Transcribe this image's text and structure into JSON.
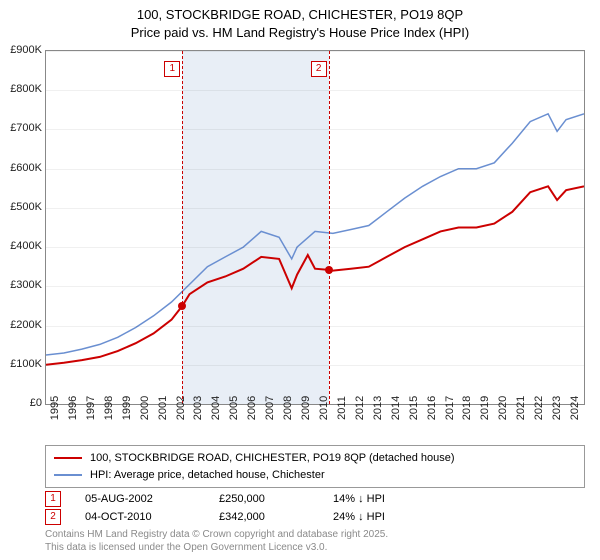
{
  "title_line1": "100, STOCKBRIDGE ROAD, CHICHESTER, PO19 8QP",
  "title_line2": "Price paid vs. HM Land Registry's House Price Index (HPI)",
  "chart": {
    "type": "line",
    "x_start_year": 1995,
    "x_end_year": 2025,
    "y_min": 0,
    "y_max": 900000,
    "y_tick_step": 100000,
    "y_tick_labels": [
      "£0",
      "£100K",
      "£200K",
      "£300K",
      "£400K",
      "£500K",
      "£600K",
      "£700K",
      "£800K",
      "£900K"
    ],
    "x_tick_years": [
      1995,
      1996,
      1997,
      1998,
      1999,
      2000,
      2001,
      2002,
      2003,
      2004,
      2005,
      2006,
      2007,
      2008,
      2009,
      2010,
      2011,
      2012,
      2013,
      2014,
      2015,
      2016,
      2017,
      2018,
      2019,
      2020,
      2021,
      2022,
      2023,
      2024
    ],
    "grid_color": "#f0f0f0",
    "background_color": "#ffffff",
    "shaded_range_years": [
      2002.6,
      2010.76
    ],
    "shaded_color": "#e8eef6",
    "series": [
      {
        "name": "price_paid",
        "label": "100, STOCKBRIDGE ROAD, CHICHESTER, PO19 8QP (detached house)",
        "color": "#cc0000",
        "line_width": 2,
        "points_year_value": [
          [
            1995,
            100000
          ],
          [
            1996,
            105000
          ],
          [
            1997,
            112000
          ],
          [
            1998,
            120000
          ],
          [
            1999,
            135000
          ],
          [
            2000,
            155000
          ],
          [
            2001,
            180000
          ],
          [
            2002,
            215000
          ],
          [
            2002.6,
            250000
          ],
          [
            2003,
            280000
          ],
          [
            2004,
            310000
          ],
          [
            2005,
            325000
          ],
          [
            2006,
            345000
          ],
          [
            2007,
            375000
          ],
          [
            2008,
            370000
          ],
          [
            2008.7,
            295000
          ],
          [
            2009,
            330000
          ],
          [
            2009.6,
            380000
          ],
          [
            2010,
            345000
          ],
          [
            2010.76,
            342000
          ],
          [
            2011,
            340000
          ],
          [
            2012,
            345000
          ],
          [
            2013,
            350000
          ],
          [
            2014,
            375000
          ],
          [
            2015,
            400000
          ],
          [
            2016,
            420000
          ],
          [
            2017,
            440000
          ],
          [
            2018,
            450000
          ],
          [
            2019,
            450000
          ],
          [
            2020,
            460000
          ],
          [
            2021,
            490000
          ],
          [
            2022,
            540000
          ],
          [
            2023,
            555000
          ],
          [
            2023.5,
            520000
          ],
          [
            2024,
            545000
          ],
          [
            2025,
            555000
          ]
        ]
      },
      {
        "name": "hpi",
        "label": "HPI: Average price, detached house, Chichester",
        "color": "#6a8fd1",
        "line_width": 1.5,
        "points_year_value": [
          [
            1995,
            125000
          ],
          [
            1996,
            130000
          ],
          [
            1997,
            140000
          ],
          [
            1998,
            152000
          ],
          [
            1999,
            170000
          ],
          [
            2000,
            195000
          ],
          [
            2001,
            225000
          ],
          [
            2002,
            260000
          ],
          [
            2003,
            305000
          ],
          [
            2004,
            350000
          ],
          [
            2005,
            375000
          ],
          [
            2006,
            400000
          ],
          [
            2007,
            440000
          ],
          [
            2008,
            425000
          ],
          [
            2008.7,
            370000
          ],
          [
            2009,
            400000
          ],
          [
            2010,
            440000
          ],
          [
            2011,
            435000
          ],
          [
            2012,
            445000
          ],
          [
            2013,
            455000
          ],
          [
            2014,
            490000
          ],
          [
            2015,
            525000
          ],
          [
            2016,
            555000
          ],
          [
            2017,
            580000
          ],
          [
            2018,
            600000
          ],
          [
            2019,
            600000
          ],
          [
            2020,
            615000
          ],
          [
            2021,
            665000
          ],
          [
            2022,
            720000
          ],
          [
            2023,
            740000
          ],
          [
            2023.5,
            695000
          ],
          [
            2024,
            725000
          ],
          [
            2025,
            740000
          ]
        ]
      }
    ],
    "sale_markers": [
      {
        "n": "1",
        "year": 2002.6,
        "value": 250000
      },
      {
        "n": "2",
        "year": 2010.76,
        "value": 342000
      }
    ]
  },
  "legend": {
    "items": [
      {
        "color": "#cc0000",
        "label": "100, STOCKBRIDGE ROAD, CHICHESTER, PO19 8QP (detached house)"
      },
      {
        "color": "#6a8fd1",
        "label": "HPI: Average price, detached house, Chichester"
      }
    ]
  },
  "sales": [
    {
      "n": "1",
      "date": "05-AUG-2002",
      "price": "£250,000",
      "delta": "14% ↓ HPI"
    },
    {
      "n": "2",
      "date": "04-OCT-2010",
      "price": "£342,000",
      "delta": "24% ↓ HPI"
    }
  ],
  "footer_line1": "Contains HM Land Registry data © Crown copyright and database right 2025.",
  "footer_line2": "This data is licensed under the Open Government Licence v3.0."
}
